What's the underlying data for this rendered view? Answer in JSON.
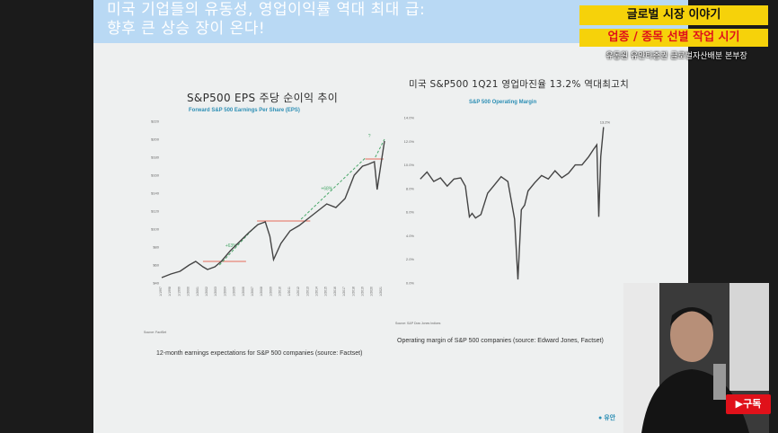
{
  "slide": {
    "title": "미국 기업들의 유동성, 영업이익률 역대 최대 급:\n향후 큰 상승 장이 온다!"
  },
  "banner": {
    "line1": "글로벌 시장 이야기",
    "line2": "업종 / 종목 선별 작업 시기",
    "line3": "유동원 유안타증권 글로벌자산배분 본부장"
  },
  "subscribe_label": "▶구독",
  "logo_text": "유안",
  "colors": {
    "accent_yellow": "#f6d20a",
    "accent_red": "#e0111a",
    "line_dark": "#444444",
    "guide_red": "#e56a5a",
    "trend_green": "#4aa86a",
    "header_blue": "#b9d9f4"
  },
  "chart_data": [
    {
      "type": "line",
      "title": "S&P500 EPS 주당 순이익 추이",
      "subtitle": "Forward S&P 500 Earnings Per Share (EPS)",
      "caption": "12-month earnings expectations for S&P 500 companies (source: Factset)",
      "source": "Source: FactSet",
      "ylim": [
        40,
        220
      ],
      "y_ticks": [
        "$40",
        "$60",
        "$80",
        "$100",
        "$120",
        "$140",
        "$160",
        "$180",
        "$200",
        "$220"
      ],
      "x_ticks": [
        "1/1997",
        "1/1998",
        "1/1999",
        "1/2000",
        "1/2001",
        "1/2002",
        "1/2003",
        "1/2004",
        "1/2005",
        "1/2006",
        "1/2007",
        "1/2008",
        "1/2009",
        "1/2010",
        "1/2011",
        "1/2012",
        "1/2013",
        "1/2014",
        "1/2015",
        "1/2016",
        "1/2017",
        "1/2018",
        "1/2019",
        "1/2020",
        "1/2021"
      ],
      "x": [
        1997,
        1998,
        1999,
        2000,
        2000.7,
        2001.5,
        2002,
        2002.8,
        2003.5,
        2004.5,
        2005.5,
        2006.5,
        2007.5,
        2008.3,
        2008.8,
        2009.2,
        2010,
        2011,
        2012,
        2013,
        2014,
        2015,
        2016,
        2017,
        2018,
        2018.9,
        2019.5,
        2020.2,
        2020.5,
        2021,
        2021.3
      ],
      "values": [
        46,
        50,
        53,
        60,
        64,
        58,
        55,
        58,
        64,
        76,
        86,
        96,
        105,
        108,
        92,
        66,
        84,
        98,
        104,
        112,
        120,
        128,
        124,
        134,
        160,
        170,
        172,
        175,
        144,
        178,
        198
      ],
      "guides": [
        {
          "x": [
            2001.5,
            2006.2
          ],
          "y": 64
        },
        {
          "x": [
            2007.4,
            2013.2
          ],
          "y": 109
        },
        {
          "x": [
            2019.2,
            2021.2
          ],
          "y": 178
        }
      ],
      "trends": [
        {
          "x": [
            2003.3,
            2007.3
          ],
          "y": [
            60,
            104
          ],
          "label": "+63%"
        },
        {
          "x": [
            2012.2,
            2019.3
          ],
          "y": [
            111,
            180
          ],
          "label": "+68%"
        },
        {
          "x": [
            2020.3,
            2021.3
          ],
          "y": [
            180,
            200
          ],
          "label": "?"
        }
      ]
    },
    {
      "type": "line",
      "title": "미국 S&P500 1Q21 영업마진율 13.2% 역대최고치",
      "subtitle": "S&P 500 Operating Margin",
      "caption": "Operating margin of S&P 500 companies (source: Edward Jones, Factset)",
      "source": "Source: S&P Dow Jones Indices",
      "ylim": [
        0,
        14
      ],
      "y_ticks": [
        "0.0%",
        "2.0%",
        "4.0%",
        "6.0%",
        "8.0%",
        "10.0%",
        "12.0%",
        "14.0%"
      ],
      "end_label": "13.2%",
      "x": [
        1994,
        1995,
        1996,
        1997,
        1998,
        1999,
        2000,
        2000.7,
        2001.3,
        2001.7,
        2002.2,
        2003,
        2004,
        2005,
        2006,
        2007,
        2008,
        2008.5,
        2009,
        2009.5,
        2010,
        2011,
        2012,
        2013,
        2014,
        2015,
        2016,
        2017,
        2018,
        2019,
        2019.7,
        2020.2,
        2020.5,
        2020.8,
        2021.2
      ],
      "values": [
        8.8,
        9.4,
        8.6,
        8.9,
        8.2,
        8.8,
        8.9,
        8.2,
        5.6,
        5.9,
        5.5,
        5.8,
        7.6,
        8.3,
        9.0,
        8.6,
        5.4,
        0.3,
        6.2,
        6.6,
        7.8,
        8.5,
        9.1,
        8.8,
        9.5,
        8.9,
        9.3,
        10.0,
        10.0,
        10.7,
        11.3,
        11.7,
        5.6,
        10.7,
        13.2
      ]
    }
  ]
}
